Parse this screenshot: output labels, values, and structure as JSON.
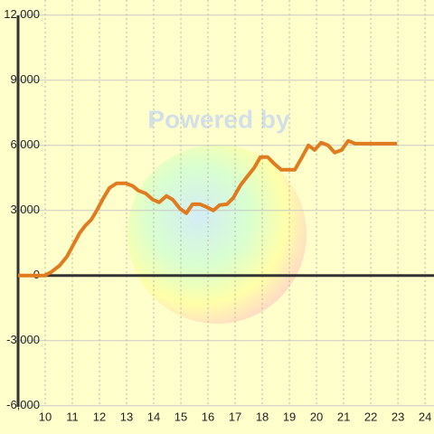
{
  "chart_data": {
    "type": "line",
    "watermark": "Powered by",
    "x": [
      9,
      9.97,
      10.23,
      10.53,
      10.8,
      11.07,
      11.27,
      11.47,
      11.7,
      11.9,
      12.13,
      12.37,
      12.63,
      12.97,
      13.23,
      13.43,
      13.7,
      13.97,
      14.2,
      14.47,
      14.7,
      14.97,
      15.2,
      15.43,
      15.7,
      15.93,
      16.2,
      16.43,
      16.7,
      16.93,
      17.2,
      17.43,
      17.7,
      17.93,
      18.2,
      18.43,
      18.7,
      18.93,
      19.2,
      19.43,
      19.7,
      19.93,
      20.17,
      20.43,
      20.67,
      20.93,
      21.17,
      21.43,
      22.97
    ],
    "series": [
      {
        "color": "#e07b20",
        "values": [
          0,
          0,
          170,
          460,
          875,
          1500,
          1960,
          2290,
          2580,
          3000,
          3540,
          4040,
          4250,
          4250,
          4125,
          3920,
          3790,
          3500,
          3375,
          3670,
          3500,
          3080,
          2875,
          3290,
          3290,
          3170,
          3000,
          3250,
          3290,
          3580,
          4170,
          4540,
          4960,
          5460,
          5460,
          5170,
          4875,
          4875,
          4875,
          5375,
          6000,
          5790,
          6125,
          6000,
          5670,
          5790,
          6210,
          6080,
          6080
        ]
      }
    ],
    "xlim": [
      9,
      24.33
    ],
    "xticks": [
      10,
      11,
      12,
      13,
      14,
      15,
      16,
      17,
      18,
      19,
      20,
      21,
      22,
      23,
      24
    ],
    "ylim": [
      -7300,
      12700
    ],
    "yticks": [
      {
        "value": -6000,
        "label": "-6,000"
      },
      {
        "value": -3000,
        "label": "-3,000"
      },
      0,
      {
        "value": 3000,
        "label": "3,000"
      },
      {
        "value": 6000,
        "label": "6,000"
      },
      {
        "value": 9000,
        "label": "9,000"
      },
      {
        "value": 12000,
        "label": "12,000"
      }
    ],
    "grid": true
  }
}
